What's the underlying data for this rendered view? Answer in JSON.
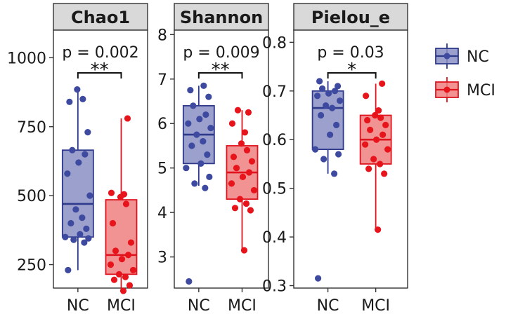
{
  "chart_data": {
    "type": "boxplot",
    "group_labels": [
      "NC",
      "MCI"
    ],
    "colors": {
      "NC": {
        "line": "#2e3a8c",
        "fill": "#8a8fc4",
        "point": "#3d4aa0"
      },
      "MCI": {
        "line": "#e0141e",
        "fill": "#f08080",
        "point": "#e8141c"
      }
    },
    "legend": {
      "position": "right",
      "entries": [
        "NC",
        "MCI"
      ]
    },
    "panels": [
      {
        "title": "Chao1",
        "ylim": [
          165,
          1100
        ],
        "ticks": [
          250,
          500,
          750,
          1000
        ],
        "tick_labels": [
          "250",
          "500",
          "750",
          "1000"
        ],
        "annotation": "p = 0.002",
        "significance": "**",
        "groups": [
          {
            "name": "NC",
            "min": 230,
            "q1": 350,
            "median": 470,
            "q3": 665,
            "max": 885,
            "points": [
              230,
              330,
              340,
              345,
              350,
              360,
              380,
              400,
              420,
              450,
              500,
              580,
              620,
              650,
              665,
              730,
              840,
              850,
              885
            ]
          },
          {
            "name": "MCI",
            "min": 155,
            "q1": 215,
            "median": 285,
            "q3": 485,
            "max": 780,
            "points": [
              155,
              175,
              195,
              205,
              215,
              230,
              250,
              270,
              285,
              300,
              330,
              400,
              470,
              495,
              505,
              510,
              780
            ]
          }
        ]
      },
      {
        "title": "Shannon",
        "ylim": [
          2.3,
          8.1
        ],
        "ticks": [
          3,
          4,
          5,
          6,
          7,
          8
        ],
        "tick_labels": [
          "3",
          "4",
          "5",
          "6",
          "7",
          "8"
        ],
        "annotation": "p = 0.009",
        "significance": "**",
        "groups": [
          {
            "name": "NC",
            "min": 4.6,
            "q1": 5.1,
            "median": 5.75,
            "q3": 6.4,
            "max": 6.85,
            "points": [
              2.45,
              4.55,
              4.65,
              4.8,
              5.0,
              5.1,
              5.3,
              5.5,
              5.6,
              5.75,
              5.9,
              6.0,
              6.1,
              6.2,
              6.4,
              6.6,
              6.75,
              6.85
            ]
          },
          {
            "name": "MCI",
            "min": 3.15,
            "q1": 4.3,
            "median": 4.9,
            "q3": 5.5,
            "max": 6.3,
            "points": [
              3.15,
              4.05,
              4.1,
              4.2,
              4.3,
              4.5,
              4.65,
              4.8,
              4.9,
              5.0,
              5.15,
              5.25,
              5.4,
              5.55,
              5.8,
              6.0,
              6.25,
              6.3
            ]
          }
        ]
      },
      {
        "title": "Pielou_e",
        "ylim": [
          0.295,
          0.825
        ],
        "ticks": [
          0.3,
          0.4,
          0.5,
          0.6,
          0.7,
          0.8
        ],
        "tick_labels": [
          "0.3",
          "0.4",
          "0.5",
          "0.6",
          "0.7",
          "0.8"
        ],
        "annotation": "p = 0.03",
        "significance": "*",
        "groups": [
          {
            "name": "NC",
            "min": 0.53,
            "q1": 0.58,
            "median": 0.665,
            "q3": 0.7,
            "max": 0.72,
            "points": [
              0.315,
              0.53,
              0.56,
              0.57,
              0.58,
              0.61,
              0.63,
              0.65,
              0.665,
              0.67,
              0.68,
              0.69,
              0.695,
              0.7,
              0.705,
              0.71,
              0.72
            ]
          },
          {
            "name": "MCI",
            "min": 0.415,
            "q1": 0.55,
            "median": 0.6,
            "q3": 0.65,
            "max": 0.715,
            "points": [
              0.415,
              0.53,
              0.54,
              0.55,
              0.56,
              0.58,
              0.59,
              0.6,
              0.61,
              0.62,
              0.63,
              0.64,
              0.645,
              0.65,
              0.66,
              0.69,
              0.715
            ]
          }
        ]
      }
    ]
  }
}
